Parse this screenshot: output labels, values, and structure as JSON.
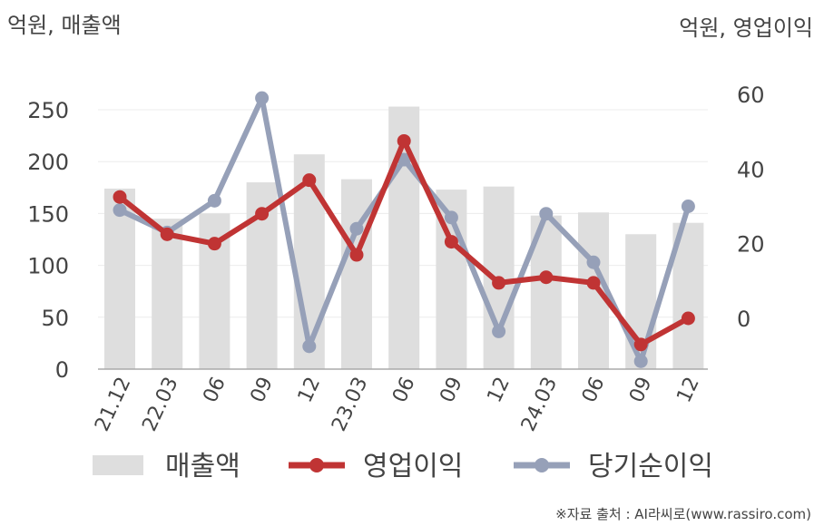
{
  "chart_data": {
    "type": "bar+line",
    "left_axis_title": "억원, 매출액",
    "right_axis_title": "억원, 영업이익",
    "categories": [
      "21.12",
      "22.03",
      "06",
      "09",
      "12",
      "23.03",
      "06",
      "09",
      "12",
      "24.03",
      "06",
      "09",
      "12"
    ],
    "left_axis": {
      "min": 0,
      "max": 250,
      "ticks": [
        0,
        50,
        100,
        150,
        200,
        250
      ]
    },
    "right_axis": {
      "min": -13.5,
      "max": 60,
      "ticks": [
        0,
        20,
        40,
        60
      ]
    },
    "series": [
      {
        "name": "매출액",
        "type": "bar",
        "axis": "left",
        "color": "#dedede",
        "values": [
          174,
          145,
          150,
          180,
          207,
          183,
          253,
          173,
          176,
          148,
          151,
          130,
          141
        ]
      },
      {
        "name": "영업이익",
        "type": "line",
        "axis": "right",
        "color": "#c03434",
        "values": [
          32.5,
          22.5,
          20,
          28,
          37,
          17,
          47.5,
          20.5,
          9.5,
          11,
          9.5,
          -7,
          0
        ]
      },
      {
        "name": "당기순이익",
        "type": "line",
        "axis": "right",
        "color": "#96a0b8",
        "values": [
          29,
          23,
          31.5,
          59,
          -7.5,
          24,
          42.5,
          27,
          -3.5,
          28,
          15,
          -11.5,
          30
        ]
      }
    ],
    "grid": true,
    "legend_position": "bottom"
  },
  "source": "※자료 출처 : AI라씨로(www.rassiro.com)"
}
